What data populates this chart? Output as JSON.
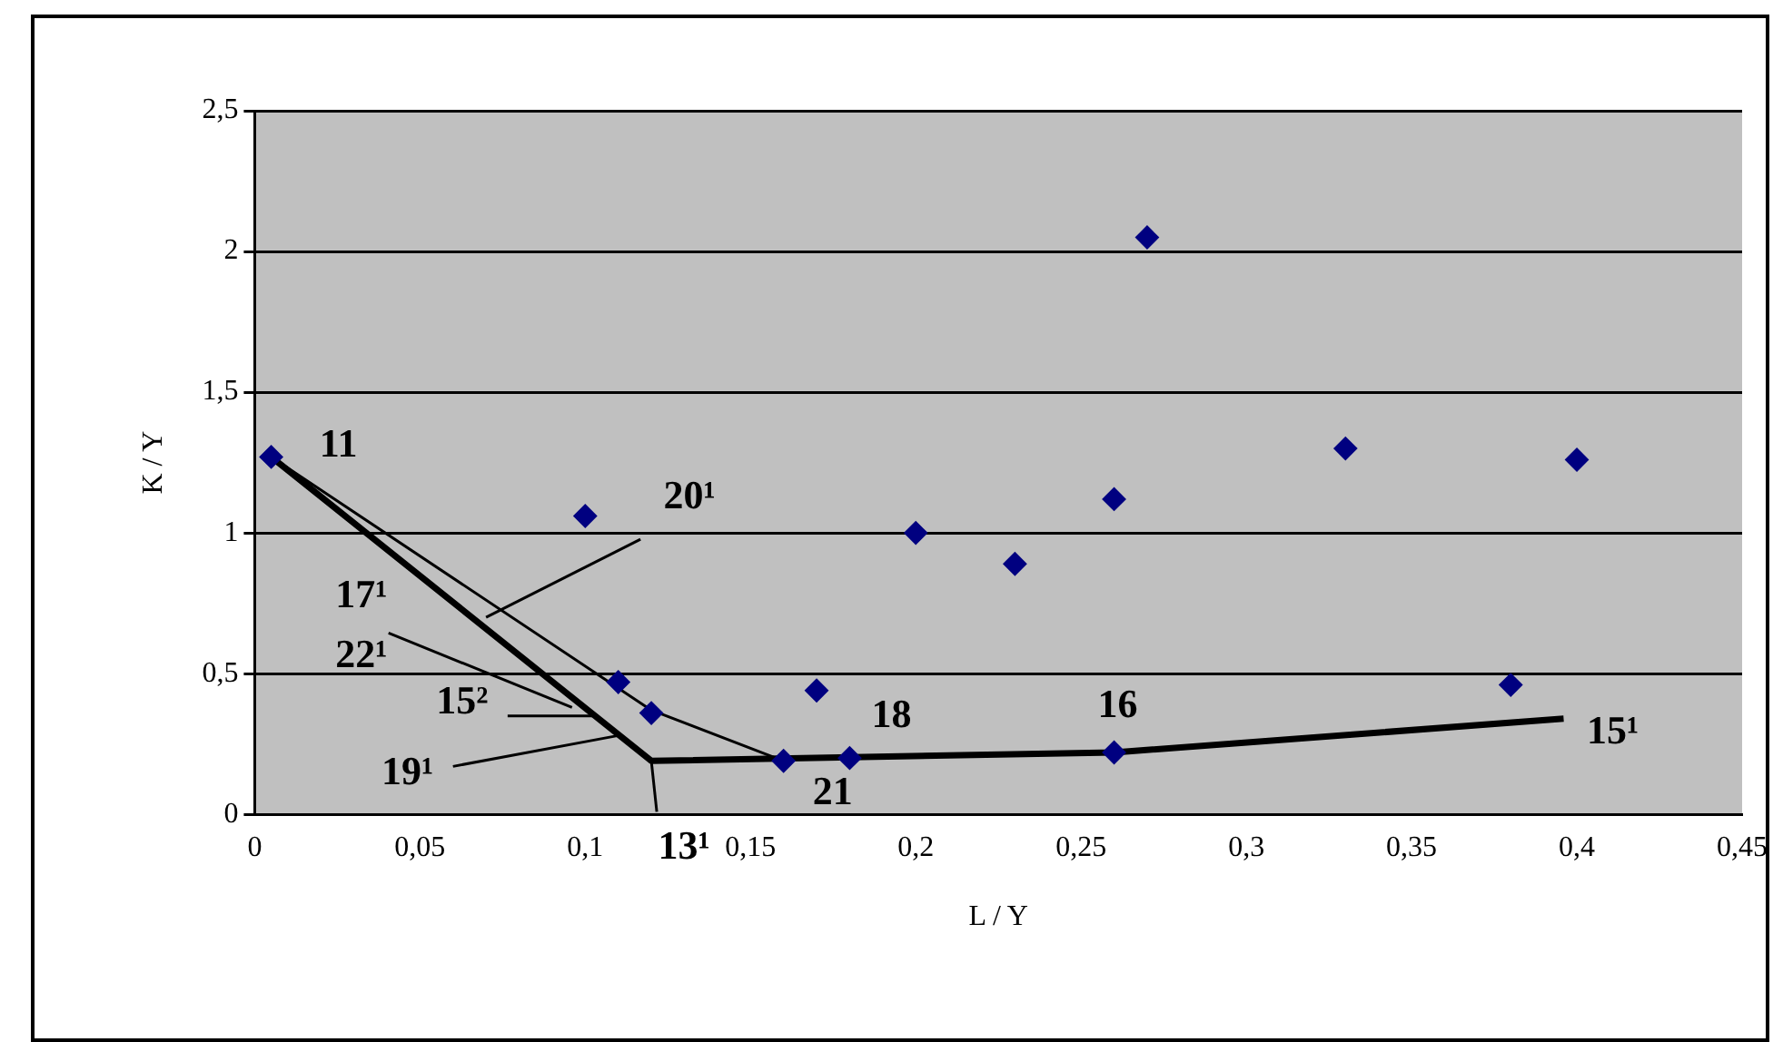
{
  "chart_data": {
    "type": "scatter",
    "xlabel": "L / Y",
    "ylabel": "K / Y",
    "xlim": [
      0,
      0.45
    ],
    "xticks": [
      0,
      {
        "value": 0.05,
        "label": "0,05"
      },
      {
        "value": 0.1,
        "label": "0,1"
      },
      {
        "value": 0.15,
        "label": "0,15"
      },
      {
        "value": 0.2,
        "label": "0,2"
      },
      {
        "value": 0.25,
        "label": "0,25"
      },
      {
        "value": 0.3,
        "label": "0,3"
      },
      {
        "value": 0.35,
        "label": "0,35"
      },
      {
        "value": 0.4,
        "label": "0,4"
      },
      {
        "value": 0.45,
        "label": "0,45"
      }
    ],
    "ylim": [
      0,
      2.5
    ],
    "yticks": [
      0,
      {
        "value": 0.5,
        "label": "0,5"
      },
      1,
      {
        "value": 1.5,
        "label": "1,5"
      },
      2,
      {
        "value": 2.5,
        "label": "2,5"
      }
    ],
    "grid": "y",
    "legend": false,
    "series": [
      {
        "color": "#000080",
        "marker": "diamond",
        "x": [
          0.005,
          0.1,
          0.11,
          0.12,
          0.16,
          0.17,
          0.18,
          0.2,
          0.23,
          0.26,
          0.26,
          0.27,
          0.33,
          0.38,
          0.4
        ],
        "values": [
          1.27,
          1.06,
          0.47,
          0.36,
          0.19,
          0.44,
          0.2,
          1.0,
          0.89,
          1.12,
          0.22,
          2.05,
          1.3,
          0.46,
          1.26
        ]
      },
      {
        "type": "line",
        "color": "#000000",
        "marker": "none",
        "x": [
          0.005,
          0.12,
          0.26,
          0.396
        ],
        "values": [
          1.27,
          0.19,
          0.22,
          0.34
        ]
      },
      {
        "type": "line",
        "color": "#000000",
        "marker": "none",
        "x": [
          0.005,
          0.12,
          0.16
        ],
        "values": [
          1.27,
          0.37,
          0.19
        ]
      }
    ],
    "annotations": [
      {
        "text": "11",
        "x": 0.005,
        "y": 1.27
      },
      {
        "text": "20¹",
        "x": 0.07,
        "y": 0.7
      },
      {
        "text": "17¹",
        "x": 0.096,
        "y": 0.38
      },
      {
        "text": "22¹",
        "x": 0.096,
        "y": 0.38
      },
      {
        "text": "15²",
        "x": 0.104,
        "y": 0.35
      },
      {
        "text": "19¹",
        "x": 0.11,
        "y": 0.28
      },
      {
        "text": "13¹",
        "x": 0.12,
        "y": 0.19
      },
      {
        "text": "21",
        "x": 0.16,
        "y": 0.19
      },
      {
        "text": "18",
        "x": 0.18,
        "y": 0.2
      },
      {
        "text": "16",
        "x": 0.26,
        "y": 0.22
      },
      {
        "text": "15¹",
        "x": 0.396,
        "y": 0.34
      }
    ]
  }
}
